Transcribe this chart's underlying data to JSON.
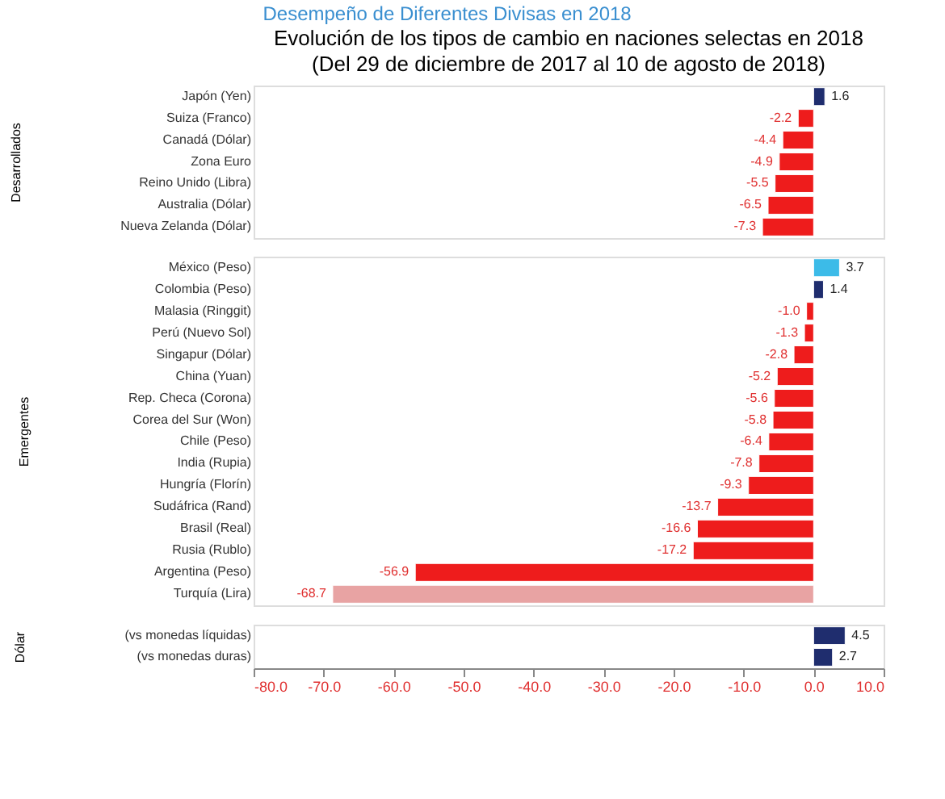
{
  "chart_data": [
    {
      "type": "bar",
      "orientation": "horizontal",
      "title": "Evolución de los tipos de cambio en naciones selectas en 2018",
      "subtitle": "(Del 29 de diciembre de 2017 al 10 de agosto de 2018)",
      "annotations": [
        "Desempeño de Diferentes Divisas en 2018"
      ],
      "ylabel": "Desarrollados",
      "categories": [
        "Japón (Yen)",
        "Suiza (Franco)",
        "Canadá (Dólar)",
        "Zona Euro",
        "Reino Unido (Libra)",
        "Australia (Dólar)",
        "Nueva Zelanda (Dólar)"
      ],
      "values": [
        1.6,
        -2.2,
        -4.4,
        -4.9,
        -5.5,
        -6.5,
        -7.3
      ],
      "value_labels": [
        "1.6",
        "-2.2",
        "-4.4",
        "-4.9",
        "-5.5",
        "-6.5",
        "-7.3"
      ],
      "colors": [
        "#1f2d6e",
        "#ee1c1c",
        "#ee1c1c",
        "#ee1c1c",
        "#ee1c1c",
        "#ee1c1c",
        "#ee1c1c"
      ],
      "xlim": [
        -80,
        10
      ],
      "tick_labels": "y"
    },
    {
      "type": "bar",
      "orientation": "horizontal",
      "ylabel": "Emergentes",
      "categories": [
        "México (Peso)",
        "Colombia (Peso)",
        "Malasia (Ringgit)",
        "Perú (Nuevo Sol)",
        "Singapur (Dólar)",
        "China (Yuan)",
        "Rep. Checa (Corona)",
        "Corea del Sur (Won)",
        "Chile (Peso)",
        "India (Rupia)",
        "Hungría (Florín)",
        "Sudáfrica (Rand)",
        "Brasil (Real)",
        "Rusia (Rublo)",
        "Argentina (Peso)",
        "Turquía (Lira)"
      ],
      "values": [
        3.7,
        1.4,
        -1.0,
        -1.3,
        -2.8,
        -5.2,
        -5.6,
        -5.8,
        -6.4,
        -7.8,
        -9.3,
        -13.7,
        -16.6,
        -17.2,
        -56.9,
        -68.7
      ],
      "value_labels": [
        "3.7",
        "1.4",
        "-1.0",
        "-1.3",
        "-2.8",
        "-5.2",
        "-5.6",
        "-5.8",
        "-6.4",
        "-7.8",
        "-9.3",
        "-13.7",
        "-16.6",
        "-17.2",
        "-56.9",
        "-68.7"
      ],
      "colors": [
        "#3cbbe8",
        "#1f2d6e",
        "#ee1c1c",
        "#ee1c1c",
        "#ee1c1c",
        "#ee1c1c",
        "#ee1c1c",
        "#ee1c1c",
        "#ee1c1c",
        "#ee1c1c",
        "#ee1c1c",
        "#ee1c1c",
        "#ee1c1c",
        "#ee1c1c",
        "#ee1c1c",
        "#e8a3a3"
      ],
      "xlim": [
        -80,
        10
      ],
      "tick_labels": "y"
    },
    {
      "type": "bar",
      "orientation": "horizontal",
      "ylabel": "Dólar",
      "categories": [
        "(vs monedas líquidas)",
        "(vs monedas duras)"
      ],
      "values": [
        4.5,
        2.7
      ],
      "value_labels": [
        "4.5",
        "2.7"
      ],
      "colors": [
        "#1f2d6e",
        "#1f2d6e"
      ],
      "xlim": [
        -80,
        10
      ],
      "xticks": [
        {
          "value": -80,
          "label": "-80.0"
        },
        {
          "value": -70,
          "label": "-70.0"
        },
        {
          "value": -60,
          "label": "-60.0"
        },
        {
          "value": -50,
          "label": "-50.0"
        },
        {
          "value": -40,
          "label": "-40.0"
        },
        {
          "value": -30,
          "label": "-30.0"
        },
        {
          "value": -20,
          "label": "-20.0"
        },
        {
          "value": -10,
          "label": "-10.0"
        },
        {
          "value": 0,
          "label": "0.0"
        },
        {
          "value": 10,
          "label": "10.0"
        }
      ]
    }
  ]
}
